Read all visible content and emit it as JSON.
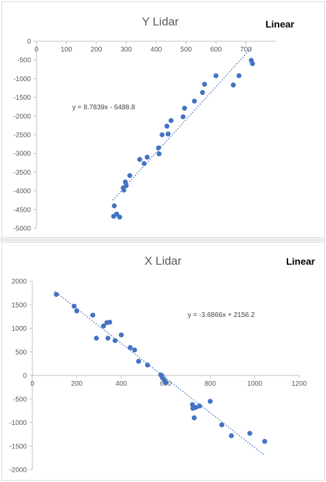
{
  "chart_data": [
    {
      "type": "scatter",
      "title": "Y Lidar",
      "tag": "Linear",
      "equation": "y = 8.7839x - 6488.8",
      "xlim": [
        0,
        800
      ],
      "ylim": [
        -5000,
        0
      ],
      "xticks": [
        0,
        100,
        200,
        300,
        400,
        500,
        600,
        700
      ],
      "yticks": [
        0,
        -500,
        -1000,
        -1500,
        -2000,
        -2500,
        -3000,
        -3500,
        -4000,
        -4500,
        -5000
      ],
      "trendline": {
        "slope": 8.7839,
        "intercept": -6488.8,
        "x_range": [
          255,
          720
        ]
      },
      "grid": false,
      "colors": {
        "points": "#4472c4",
        "trend": "#4472c4"
      },
      "points": [
        [
          258,
          -4680
        ],
        [
          260,
          -4400
        ],
        [
          268,
          -4620
        ],
        [
          278,
          -4700
        ],
        [
          290,
          -3920
        ],
        [
          292,
          -3980
        ],
        [
          297,
          -3760
        ],
        [
          300,
          -3860
        ],
        [
          312,
          -3590
        ],
        [
          345,
          -3160
        ],
        [
          360,
          -3270
        ],
        [
          370,
          -3100
        ],
        [
          408,
          -2850
        ],
        [
          410,
          -3010
        ],
        [
          420,
          -2500
        ],
        [
          436,
          -2270
        ],
        [
          440,
          -2480
        ],
        [
          450,
          -2120
        ],
        [
          490,
          -2020
        ],
        [
          495,
          -1790
        ],
        [
          528,
          -1600
        ],
        [
          555,
          -1370
        ],
        [
          562,
          -1150
        ],
        [
          600,
          -920
        ],
        [
          658,
          -1170
        ],
        [
          677,
          -920
        ],
        [
          718,
          -510
        ],
        [
          722,
          -600
        ]
      ]
    },
    {
      "type": "scatter",
      "title": "X Lidar",
      "tag": "Linear",
      "equation": "y = -3.6866x + 2156.2",
      "xlim": [
        0,
        1200
      ],
      "ylim": [
        -2000,
        2000
      ],
      "xticks": [
        0,
        200,
        400,
        600,
        800,
        1000,
        1200
      ],
      "yticks": [
        2000,
        1500,
        1000,
        500,
        0,
        -500,
        -1000,
        -1500,
        -2000
      ],
      "trendline": {
        "slope": -3.6866,
        "intercept": 2156.2,
        "x_range": [
          100,
          1040
        ]
      },
      "grid": false,
      "colors": {
        "points": "#4472c4",
        "trend": "#4472c4"
      },
      "points": [
        [
          108,
          1720
        ],
        [
          188,
          1470
        ],
        [
          200,
          1370
        ],
        [
          272,
          1280
        ],
        [
          288,
          790
        ],
        [
          320,
          1050
        ],
        [
          335,
          1120
        ],
        [
          348,
          1130
        ],
        [
          340,
          790
        ],
        [
          372,
          740
        ],
        [
          400,
          860
        ],
        [
          440,
          590
        ],
        [
          460,
          540
        ],
        [
          478,
          300
        ],
        [
          518,
          220
        ],
        [
          578,
          10
        ],
        [
          582,
          0
        ],
        [
          585,
          -50
        ],
        [
          595,
          -110
        ],
        [
          600,
          -150
        ],
        [
          720,
          -620
        ],
        [
          722,
          -700
        ],
        [
          728,
          -900
        ],
        [
          735,
          -680
        ],
        [
          752,
          -650
        ],
        [
          800,
          -550
        ],
        [
          852,
          -1050
        ],
        [
          895,
          -1280
        ],
        [
          978,
          -1230
        ],
        [
          1045,
          -1400
        ]
      ]
    }
  ]
}
